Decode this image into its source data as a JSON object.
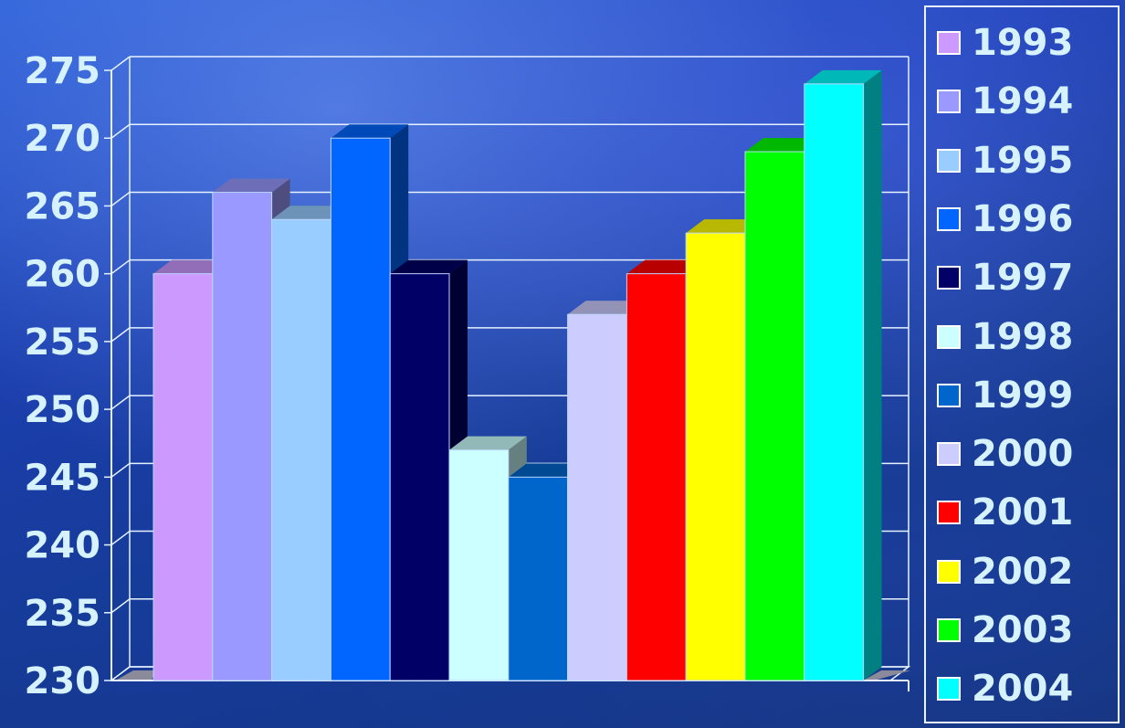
{
  "chart_data": {
    "type": "bar",
    "title": "",
    "xlabel": "",
    "ylabel": "",
    "ylim": [
      230,
      275
    ],
    "yticks": [
      "230",
      "235",
      "240",
      "245",
      "250",
      "255",
      "260",
      "265",
      "270",
      "275"
    ],
    "grid": true,
    "legend_position": "right",
    "series": [
      {
        "name": "1993",
        "value": 260,
        "color": "#cc99ff"
      },
      {
        "name": "1994",
        "value": 266,
        "color": "#9999ff"
      },
      {
        "name": "1995",
        "value": 264,
        "color": "#99ccff"
      },
      {
        "name": "1996",
        "value": 270,
        "color": "#0066ff"
      },
      {
        "name": "1997",
        "value": 260,
        "color": "#000066"
      },
      {
        "name": "1998",
        "value": 247,
        "color": "#ccffff"
      },
      {
        "name": "1999",
        "value": 245,
        "color": "#0066cc"
      },
      {
        "name": "2000",
        "value": 257,
        "color": "#ccccff"
      },
      {
        "name": "2001",
        "value": 260,
        "color": "#ff0000"
      },
      {
        "name": "2002",
        "value": 263,
        "color": "#ffff00"
      },
      {
        "name": "2003",
        "value": 269,
        "color": "#00ff00"
      },
      {
        "name": "2004",
        "value": 274,
        "color": "#00ffff"
      }
    ]
  }
}
